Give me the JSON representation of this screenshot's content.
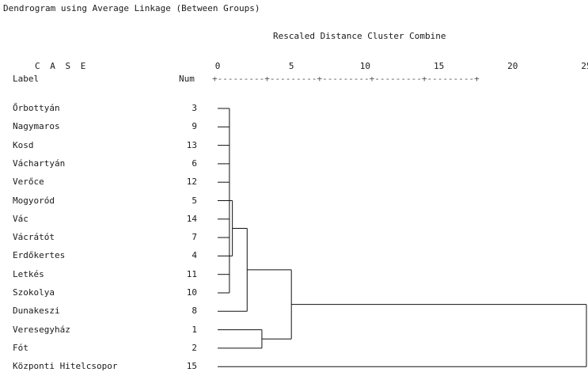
{
  "title": "Dendrogram using Average Linkage (Between Groups)",
  "subtitle": "Rescaled Distance Cluster Combine",
  "headers": {
    "case": "C A S E",
    "label": "Label",
    "num": "Num",
    "ruler": "+---------+---------+---------+---------+---------+"
  },
  "chart_data": {
    "type": "dendrogram",
    "title": "Dendrogram using Average Linkage (Between Groups)",
    "xlabel": "Rescaled Distance Cluster Combine",
    "xlim": [
      0,
      25
    ],
    "xticks": [
      0,
      5,
      10,
      15,
      20,
      25
    ],
    "xtick_labels": [
      "0",
      "5",
      "10",
      "15",
      "20",
      "25"
    ],
    "leaves": [
      {
        "label": "Őrbottyán",
        "num": "3"
      },
      {
        "label": "Nagymaros",
        "num": "9"
      },
      {
        "label": "Kosd",
        "num": "13"
      },
      {
        "label": "Váchartyán",
        "num": "6"
      },
      {
        "label": "Verőce",
        "num": "12"
      },
      {
        "label": "Mogyoród",
        "num": "5"
      },
      {
        "label": "Vác",
        "num": "14"
      },
      {
        "label": "Vácrátót",
        "num": "7"
      },
      {
        "label": "Erdőkertes",
        "num": "4"
      },
      {
        "label": "Letkés",
        "num": "11"
      },
      {
        "label": "Szokolya",
        "num": "10"
      },
      {
        "label": "Dunakeszi",
        "num": "8"
      },
      {
        "label": "Veresegyház",
        "num": "1"
      },
      {
        "label": "Fót",
        "num": "2"
      },
      {
        "label": "Központi Hitelcsopor",
        "num": "15"
      }
    ],
    "merges": [
      {
        "id": "c1",
        "children": [
          0,
          1,
          2,
          3,
          4,
          5,
          6,
          7,
          9,
          10
        ],
        "distance": 0.8
      },
      {
        "id": "c2",
        "children": [
          "c1",
          8
        ],
        "distance": 1.0
      },
      {
        "id": "c3",
        "children": [
          "c2",
          11
        ],
        "distance": 2.0
      },
      {
        "id": "c4",
        "children": [
          12,
          13
        ],
        "distance": 3.0
      },
      {
        "id": "c5",
        "children": [
          "c3",
          "c4"
        ],
        "distance": 5.0
      },
      {
        "id": "c6",
        "children": [
          "c5",
          14
        ],
        "distance": 25.0
      }
    ]
  }
}
